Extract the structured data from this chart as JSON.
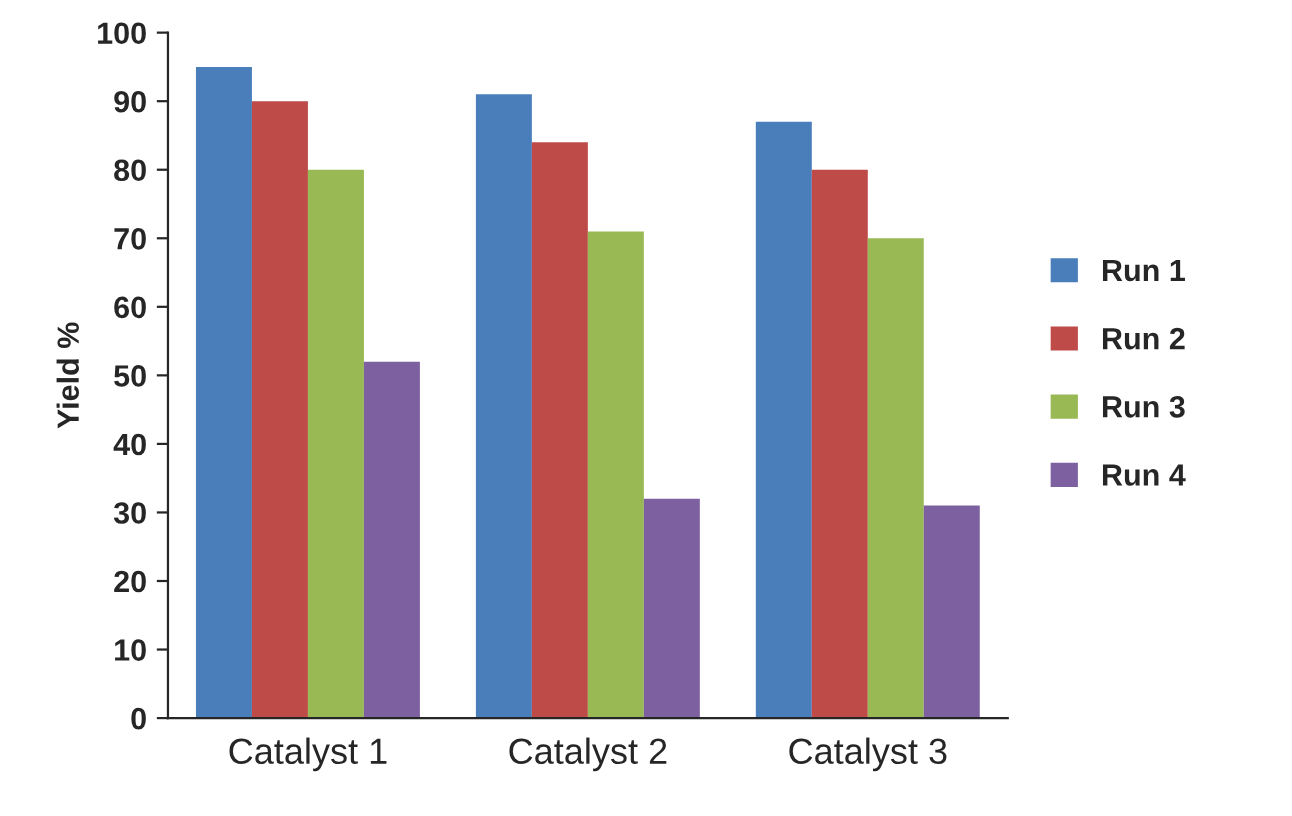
{
  "chart_data": {
    "type": "bar",
    "ylabel": "Yield %",
    "categories": [
      "Catalyst 1",
      "Catalyst 2",
      "Catalyst 3"
    ],
    "series": [
      {
        "name": "Run 1",
        "color": "#4a7ebb",
        "values": [
          95,
          91,
          87
        ]
      },
      {
        "name": "Run 2",
        "color": "#be4b48",
        "values": [
          90,
          84,
          80
        ]
      },
      {
        "name": "Run 3",
        "color": "#98b954",
        "values": [
          80,
          71,
          70
        ]
      },
      {
        "name": "Run 4",
        "color": "#7d60a0",
        "values": [
          52,
          32,
          31
        ]
      }
    ],
    "ylim": [
      0,
      100
    ],
    "yticks": [
      0,
      10,
      20,
      30,
      40,
      50,
      60,
      70,
      80,
      90,
      100
    ],
    "grid": false,
    "legend": "right"
  }
}
